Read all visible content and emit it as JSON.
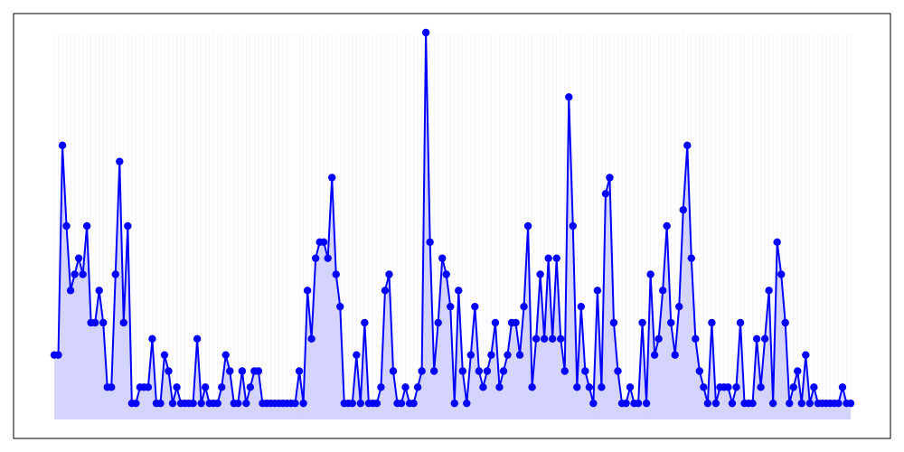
{
  "chart_data": {
    "type": "area",
    "title": "",
    "xlabel": "",
    "ylabel": "",
    "xlim": [
      0,
      195
    ],
    "ylim": [
      0,
      24
    ],
    "grid": true,
    "axis_ticks": false,
    "series": [
      {
        "color": "#0000ff",
        "fill_color": "#ccccff",
        "values": [
          4,
          4,
          17,
          12,
          8,
          9,
          10,
          9,
          12,
          6,
          6,
          8,
          6,
          2,
          2,
          9,
          16,
          6,
          12,
          1,
          1,
          2,
          2,
          2,
          5,
          1,
          1,
          4,
          3,
          1,
          2,
          1,
          1,
          1,
          1,
          5,
          1,
          2,
          1,
          1,
          1,
          2,
          4,
          3,
          1,
          1,
          3,
          1,
          2,
          3,
          3,
          1,
          1,
          1,
          1,
          1,
          1,
          1,
          1,
          1,
          3,
          1,
          8,
          5,
          10,
          11,
          11,
          10,
          15,
          9,
          7,
          1,
          1,
          1,
          4,
          1,
          6,
          1,
          1,
          1,
          2,
          8,
          9,
          3,
          1,
          1,
          2,
          1,
          1,
          2,
          3,
          24,
          11,
          3,
          6,
          10,
          9,
          7,
          1,
          8,
          3,
          1,
          4,
          7,
          3,
          2,
          3,
          4,
          6,
          2,
          3,
          4,
          6,
          6,
          4,
          7,
          12,
          2,
          5,
          9,
          5,
          10,
          5,
          10,
          5,
          3,
          20,
          12,
          2,
          7,
          3,
          2,
          1,
          8,
          2,
          14,
          15,
          6,
          3,
          1,
          1,
          2,
          1,
          1,
          6,
          1,
          9,
          4,
          5,
          8,
          12,
          6,
          4,
          7,
          13,
          17,
          10,
          5,
          3,
          2,
          1,
          6,
          1,
          2,
          2,
          2,
          1,
          2,
          6,
          1,
          1,
          1,
          5,
          2,
          5,
          8,
          1,
          11,
          9,
          6,
          1,
          2,
          3,
          1,
          4,
          1,
          2,
          1,
          1,
          1,
          1,
          1,
          1,
          2,
          1,
          1
        ]
      }
    ]
  }
}
